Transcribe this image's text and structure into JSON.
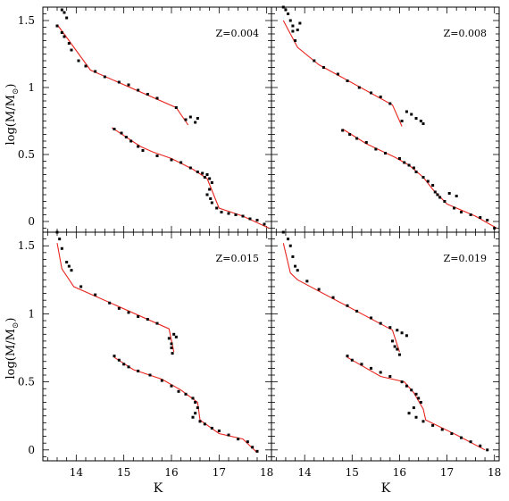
{
  "figure": {
    "ylabel_main": "log(M/M",
    "ylabel_sub": "⊙",
    "ylabel_close": ")",
    "xlabel": "K"
  },
  "colors": {
    "model_line": "#e8251f",
    "points": "#000000",
    "axes": "#000000"
  },
  "chart_data": [
    {
      "type": "scatter",
      "panel": "top-left",
      "annotation": "Z=0.004",
      "xlim": [
        13.3,
        18.1
      ],
      "ylim": [
        -0.08,
        1.6
      ],
      "xticks": [
        "14",
        "15",
        "16",
        "17",
        "18"
      ],
      "yticks": [
        "0",
        "0.5",
        "1",
        "1.5"
      ],
      "series": [
        {
          "kind": "points",
          "values": [
            [
              13.6,
              1.46
            ],
            [
              13.7,
              1.41
            ],
            [
              13.75,
              1.38
            ],
            [
              13.85,
              1.33
            ],
            [
              13.9,
              1.28
            ],
            [
              14.05,
              1.2
            ],
            [
              14.2,
              1.16
            ],
            [
              14.4,
              1.12
            ],
            [
              14.6,
              1.08
            ],
            [
              14.9,
              1.04
            ],
            [
              15.1,
              1.02
            ],
            [
              15.3,
              0.98
            ],
            [
              15.5,
              0.95
            ],
            [
              15.7,
              0.92
            ],
            [
              16.1,
              0.85
            ],
            [
              16.3,
              0.76
            ],
            [
              16.4,
              0.78
            ],
            [
              16.5,
              0.74
            ],
            [
              16.55,
              0.77
            ],
            [
              13.7,
              1.58
            ],
            [
              13.75,
              1.56
            ],
            [
              13.8,
              1.52
            ],
            [
              14.8,
              0.69
            ],
            [
              14.95,
              0.66
            ],
            [
              15.05,
              0.63
            ],
            [
              15.15,
              0.6
            ],
            [
              15.3,
              0.56
            ],
            [
              15.4,
              0.53
            ],
            [
              15.7,
              0.49
            ],
            [
              16.0,
              0.46
            ],
            [
              16.2,
              0.44
            ],
            [
              16.4,
              0.4
            ],
            [
              16.55,
              0.37
            ],
            [
              16.65,
              0.36
            ],
            [
              16.7,
              0.33
            ],
            [
              16.75,
              0.35
            ],
            [
              16.8,
              0.32
            ],
            [
              16.85,
              0.29
            ],
            [
              16.8,
              0.24
            ],
            [
              16.75,
              0.2
            ],
            [
              16.82,
              0.17
            ],
            [
              16.85,
              0.14
            ],
            [
              16.95,
              0.1
            ],
            [
              17.05,
              0.07
            ],
            [
              17.2,
              0.06
            ],
            [
              17.35,
              0.05
            ],
            [
              17.5,
              0.04
            ],
            [
              17.65,
              0.02
            ],
            [
              17.8,
              0.01
            ],
            [
              17.95,
              -0.02
            ]
          ]
        },
        {
          "kind": "line",
          "values": [
            [
              13.6,
              1.47
            ],
            [
              13.85,
              1.35
            ],
            [
              14.3,
              1.13
            ],
            [
              16.1,
              0.85
            ],
            [
              16.35,
              0.72
            ]
          ]
        },
        {
          "kind": "line",
          "values": [
            [
              14.75,
              0.7
            ],
            [
              15.35,
              0.56
            ],
            [
              15.6,
              0.52
            ],
            [
              16.0,
              0.47
            ],
            [
              16.45,
              0.39
            ],
            [
              16.75,
              0.32
            ],
            [
              17.0,
              0.1
            ],
            [
              17.5,
              0.04
            ],
            [
              18.05,
              -0.05
            ]
          ]
        }
      ]
    },
    {
      "type": "scatter",
      "panel": "top-right",
      "annotation": "Z=0.008",
      "xlim": [
        13.3,
        18.1
      ],
      "ylim": [
        -0.08,
        1.6
      ],
      "xticks": [
        "14",
        "15",
        "16",
        "17",
        "18"
      ],
      "yticks": [
        "0",
        "0.5",
        "1",
        "1.5"
      ],
      "series": [
        {
          "kind": "points",
          "values": [
            [
              13.55,
              1.6
            ],
            [
              13.6,
              1.58
            ],
            [
              13.65,
              1.55
            ],
            [
              13.7,
              1.5
            ],
            [
              13.75,
              1.46
            ],
            [
              13.85,
              1.43
            ],
            [
              13.9,
              1.48
            ],
            [
              13.75,
              1.42
            ],
            [
              13.8,
              1.35
            ],
            [
              14.2,
              1.2
            ],
            [
              14.4,
              1.15
            ],
            [
              14.7,
              1.1
            ],
            [
              14.9,
              1.05
            ],
            [
              15.15,
              1.0
            ],
            [
              15.4,
              0.96
            ],
            [
              15.6,
              0.93
            ],
            [
              15.8,
              0.88
            ],
            [
              16.05,
              0.75
            ],
            [
              16.15,
              0.82
            ],
            [
              16.25,
              0.8
            ],
            [
              16.35,
              0.77
            ],
            [
              16.45,
              0.75
            ],
            [
              16.5,
              0.73
            ],
            [
              14.8,
              0.68
            ],
            [
              14.95,
              0.65
            ],
            [
              15.1,
              0.62
            ],
            [
              15.3,
              0.59
            ],
            [
              15.5,
              0.54
            ],
            [
              15.7,
              0.51
            ],
            [
              16.0,
              0.47
            ],
            [
              16.1,
              0.44
            ],
            [
              16.2,
              0.42
            ],
            [
              16.3,
              0.4
            ],
            [
              16.35,
              0.37
            ],
            [
              16.5,
              0.33
            ],
            [
              16.6,
              0.3
            ],
            [
              16.7,
              0.27
            ],
            [
              16.75,
              0.22
            ],
            [
              16.8,
              0.2
            ],
            [
              16.85,
              0.18
            ],
            [
              16.95,
              0.15
            ],
            [
              17.05,
              0.21
            ],
            [
              17.15,
              0.1
            ],
            [
              17.2,
              0.19
            ],
            [
              17.3,
              0.07
            ],
            [
              17.5,
              0.05
            ],
            [
              17.7,
              0.03
            ],
            [
              17.85,
              0.01
            ],
            [
              18.0,
              -0.05
            ]
          ]
        },
        {
          "kind": "line",
          "values": [
            [
              13.55,
              1.5
            ],
            [
              13.85,
              1.3
            ],
            [
              14.3,
              1.17
            ],
            [
              15.85,
              0.87
            ],
            [
              16.05,
              0.71
            ]
          ]
        },
        {
          "kind": "line",
          "values": [
            [
              14.8,
              0.69
            ],
            [
              15.3,
              0.58
            ],
            [
              15.9,
              0.48
            ],
            [
              16.2,
              0.42
            ],
            [
              16.5,
              0.33
            ],
            [
              16.7,
              0.24
            ],
            [
              17.0,
              0.13
            ],
            [
              17.6,
              0.04
            ],
            [
              18.05,
              -0.05
            ]
          ]
        }
      ]
    },
    {
      "type": "scatter",
      "panel": "bottom-left",
      "annotation": "Z=0.015",
      "xlim": [
        13.3,
        18.1
      ],
      "ylim": [
        -0.08,
        1.6
      ],
      "xticks": [
        "14",
        "15",
        "16",
        "17",
        "18"
      ],
      "yticks": [
        "0",
        "0.5",
        "1",
        "1.5"
      ],
      "series": [
        {
          "kind": "points",
          "values": [
            [
              13.6,
              1.6
            ],
            [
              13.65,
              1.55
            ],
            [
              13.7,
              1.48
            ],
            [
              13.8,
              1.38
            ],
            [
              13.9,
              1.32
            ],
            [
              13.85,
              1.35
            ],
            [
              14.1,
              1.2
            ],
            [
              14.4,
              1.14
            ],
            [
              14.7,
              1.08
            ],
            [
              14.9,
              1.04
            ],
            [
              15.1,
              1.01
            ],
            [
              15.3,
              0.98
            ],
            [
              15.5,
              0.96
            ],
            [
              15.7,
              0.93
            ],
            [
              15.95,
              0.82
            ],
            [
              16.0,
              0.78
            ],
            [
              16.05,
              0.85
            ],
            [
              16.1,
              0.83
            ],
            [
              16.0,
              0.75
            ],
            [
              16.02,
              0.71
            ],
            [
              14.8,
              0.69
            ],
            [
              14.9,
              0.66
            ],
            [
              15.0,
              0.63
            ],
            [
              15.1,
              0.61
            ],
            [
              15.3,
              0.58
            ],
            [
              15.55,
              0.55
            ],
            [
              15.8,
              0.51
            ],
            [
              16.0,
              0.47
            ],
            [
              16.15,
              0.43
            ],
            [
              16.3,
              0.41
            ],
            [
              16.45,
              0.38
            ],
            [
              16.5,
              0.35
            ],
            [
              16.55,
              0.31
            ],
            [
              16.5,
              0.27
            ],
            [
              16.45,
              0.24
            ],
            [
              16.6,
              0.21
            ],
            [
              16.7,
              0.19
            ],
            [
              16.85,
              0.16
            ],
            [
              17.0,
              0.14
            ],
            [
              17.2,
              0.11
            ],
            [
              17.4,
              0.08
            ],
            [
              17.6,
              0.06
            ],
            [
              17.7,
              0.02
            ],
            [
              17.8,
              -0.01
            ]
          ]
        },
        {
          "kind": "line",
          "values": [
            [
              13.6,
              1.52
            ],
            [
              13.7,
              1.33
            ],
            [
              13.95,
              1.2
            ],
            [
              15.95,
              0.89
            ],
            [
              16.05,
              0.72
            ]
          ]
        },
        {
          "kind": "line",
          "values": [
            [
              14.8,
              0.68
            ],
            [
              15.2,
              0.59
            ],
            [
              15.8,
              0.52
            ],
            [
              16.2,
              0.44
            ],
            [
              16.55,
              0.35
            ],
            [
              16.6,
              0.22
            ],
            [
              17.0,
              0.12
            ],
            [
              17.5,
              0.08
            ],
            [
              17.8,
              -0.02
            ]
          ]
        }
      ]
    },
    {
      "type": "scatter",
      "panel": "bottom-right",
      "annotation": "Z=0.019",
      "xlim": [
        13.3,
        18.1
      ],
      "ylim": [
        -0.08,
        1.6
      ],
      "xticks": [
        "14",
        "15",
        "16",
        "17",
        "18"
      ],
      "yticks": [
        "0",
        "0.5",
        "1",
        "1.5"
      ],
      "series": [
        {
          "kind": "points",
          "values": [
            [
              13.55,
              1.6
            ],
            [
              13.65,
              1.55
            ],
            [
              13.7,
              1.5
            ],
            [
              13.75,
              1.42
            ],
            [
              13.8,
              1.35
            ],
            [
              13.85,
              1.32
            ],
            [
              14.05,
              1.24
            ],
            [
              14.3,
              1.18
            ],
            [
              14.6,
              1.12
            ],
            [
              14.9,
              1.06
            ],
            [
              15.1,
              1.02
            ],
            [
              15.4,
              0.97
            ],
            [
              15.6,
              0.93
            ],
            [
              15.8,
              0.9
            ],
            [
              15.95,
              0.88
            ],
            [
              16.05,
              0.86
            ],
            [
              16.15,
              0.84
            ],
            [
              15.85,
              0.8
            ],
            [
              15.9,
              0.76
            ],
            [
              15.95,
              0.74
            ],
            [
              16.0,
              0.7
            ],
            [
              14.9,
              0.69
            ],
            [
              15.0,
              0.66
            ],
            [
              15.2,
              0.63
            ],
            [
              15.4,
              0.6
            ],
            [
              15.6,
              0.57
            ],
            [
              15.8,
              0.54
            ],
            [
              16.05,
              0.5
            ],
            [
              16.15,
              0.47
            ],
            [
              16.25,
              0.44
            ],
            [
              16.35,
              0.41
            ],
            [
              16.4,
              0.38
            ],
            [
              16.45,
              0.35
            ],
            [
              16.3,
              0.31
            ],
            [
              16.2,
              0.27
            ],
            [
              16.35,
              0.24
            ],
            [
              16.5,
              0.21
            ],
            [
              16.7,
              0.18
            ],
            [
              16.9,
              0.15
            ],
            [
              17.1,
              0.12
            ],
            [
              17.3,
              0.09
            ],
            [
              17.5,
              0.06
            ],
            [
              17.7,
              0.03
            ],
            [
              17.85,
              0.0
            ]
          ]
        },
        {
          "kind": "line",
          "values": [
            [
              13.55,
              1.52
            ],
            [
              13.7,
              1.3
            ],
            [
              13.85,
              1.25
            ],
            [
              15.85,
              0.88
            ],
            [
              16.0,
              0.72
            ]
          ]
        },
        {
          "kind": "line",
          "values": [
            [
              14.9,
              0.68
            ],
            [
              15.6,
              0.54
            ],
            [
              16.1,
              0.5
            ],
            [
              16.3,
              0.42
            ],
            [
              16.5,
              0.3
            ],
            [
              16.55,
              0.22
            ],
            [
              17.2,
              0.11
            ],
            [
              17.8,
              0.0
            ]
          ]
        }
      ]
    }
  ]
}
